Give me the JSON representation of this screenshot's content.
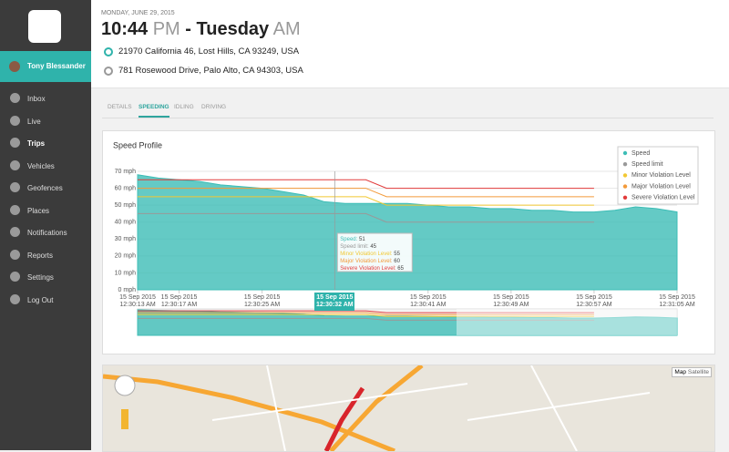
{
  "sidebar": {
    "user": "Tony Blessander",
    "nav": [
      "Inbox",
      "Live",
      "Trips",
      "Vehicles",
      "Geofences",
      "Places",
      "Notifications",
      "Reports",
      "Settings",
      "Log Out"
    ],
    "active_nav": 2
  },
  "header": {
    "date": "MONDAY, JUNE 29, 2015",
    "time": "10:44",
    "time_period": "PM",
    "separator": "-",
    "day": "Tuesday",
    "day_period": "AM",
    "addresses": [
      "21970 California 46, Lost Hills, CA 93249, USA",
      "781 Rosewood Drive, Palo Alto, CA 94303, USA"
    ]
  },
  "tabs": [
    "DETAILS",
    "SPEEDING",
    "IDLING",
    "DRIVING"
  ],
  "active_tab": 1,
  "chart_data": {
    "type": "line",
    "title": "Speed Profile",
    "x": [
      "2015-09-15T00:30:13",
      "2015-09-15T00:30:15",
      "2015-09-15T00:30:17",
      "2015-09-15T00:30:19",
      "2015-09-15T00:30:21",
      "2015-09-15T00:30:23",
      "2015-09-15T00:30:25",
      "2015-09-15T00:30:27",
      "2015-09-15T00:30:29",
      "2015-09-15T00:30:31",
      "2015-09-15T00:30:33",
      "2015-09-15T00:30:35",
      "2015-09-15T00:30:37",
      "2015-09-15T00:30:39",
      "2015-09-15T00:30:41",
      "2015-09-15T00:30:43",
      "2015-09-15T00:30:45",
      "2015-09-15T00:30:47",
      "2015-09-15T00:30:49",
      "2015-09-15T00:30:51",
      "2015-09-15T00:30:53",
      "2015-09-15T00:30:55",
      "2015-09-15T00:30:57",
      "2015-09-15T00:30:59",
      "2015-09-15T00:31:01",
      "2015-09-15T00:31:03",
      "2015-09-15T00:31:05"
    ],
    "xlim": [
      "2015-09-15T00:30:13",
      "2015-09-15T00:31:05"
    ],
    "xticks": [
      {
        "value": "2015-09-15T00:30:13",
        "label": "15 Sep 2015\n12:30:13 AM"
      },
      {
        "value": "2015-09-15T00:30:17",
        "label": "15 Sep 2015\n12:30:17 AM"
      },
      {
        "value": "2015-09-15T00:30:25",
        "label": "15 Sep 2015\n12:30:25 AM"
      },
      {
        "value": "2015-09-15T00:30:41",
        "label": "15 Sep 2015\n12:30:41 AM"
      },
      {
        "value": "2015-09-15T00:30:49",
        "label": "15 Sep 2015\n12:30:49 AM"
      },
      {
        "value": "2015-09-15T00:30:57",
        "label": "15 Sep 2015\n12:30:57 AM"
      },
      {
        "value": "2015-09-15T00:31:05",
        "label": "15 Sep 2015\n12:31:05 AM"
      }
    ],
    "ylim": [
      0,
      70
    ],
    "yticks": [
      {
        "value": 0,
        "label": "0 mph"
      },
      {
        "value": 10,
        "label": "10 mph"
      },
      {
        "value": 20,
        "label": "20 mph"
      },
      {
        "value": 30,
        "label": "30 mph"
      },
      {
        "value": 40,
        "label": "40 mph"
      },
      {
        "value": 50,
        "label": "50 mph"
      },
      {
        "value": 60,
        "label": "60 mph"
      },
      {
        "value": 70,
        "label": "70 mph"
      }
    ],
    "grid": true,
    "legend": "top-right",
    "series": [
      {
        "name": "Speed",
        "color": "#3dbdb6",
        "area": true,
        "values": [
          68,
          66,
          65,
          64,
          62,
          61,
          60,
          58,
          56,
          52,
          51,
          51,
          51,
          51,
          50,
          49,
          49,
          48,
          48,
          47,
          47,
          46,
          46,
          47,
          49,
          48,
          46
        ]
      },
      {
        "name": "Speed limit",
        "color": "#999999",
        "values": [
          45,
          45,
          45,
          45,
          45,
          45,
          45,
          45,
          45,
          45,
          45,
          45,
          40,
          40,
          40,
          40,
          40,
          40,
          40,
          40,
          40,
          40,
          40,
          null,
          null,
          null,
          null
        ]
      },
      {
        "name": "Minor Violation Level",
        "color": "#f2c832",
        "values": [
          55,
          55,
          55,
          55,
          55,
          55,
          55,
          55,
          55,
          55,
          55,
          55,
          50,
          50,
          50,
          50,
          50,
          50,
          50,
          50,
          50,
          50,
          50,
          null,
          null,
          null,
          null
        ]
      },
      {
        "name": "Major Violation Level",
        "color": "#f39a3a",
        "values": [
          60,
          60,
          60,
          60,
          60,
          60,
          60,
          60,
          60,
          60,
          60,
          60,
          55,
          55,
          55,
          55,
          55,
          55,
          55,
          55,
          55,
          55,
          55,
          null,
          null,
          null,
          null
        ]
      },
      {
        "name": "Severe Violation Level",
        "color": "#e23b3b",
        "values": [
          65,
          65,
          65,
          65,
          65,
          65,
          65,
          65,
          65,
          65,
          65,
          65,
          60,
          60,
          60,
          60,
          60,
          60,
          60,
          60,
          60,
          60,
          60,
          null,
          null,
          null,
          null
        ]
      }
    ],
    "tooltip": {
      "x": "2015-09-15T00:30:32",
      "label": "15 Sep 2015\n12:30:32 AM",
      "rows": [
        {
          "name": "Speed",
          "value": 51
        },
        {
          "name": "Speed limit",
          "value": 45
        },
        {
          "name": "Minor Violation Level",
          "value": 55
        },
        {
          "name": "Major Violation Level",
          "value": 60
        },
        {
          "name": "Severe Violation Level",
          "value": 65
        }
      ]
    }
  },
  "map": {
    "buttons": [
      "Map",
      "Satellite"
    ]
  }
}
